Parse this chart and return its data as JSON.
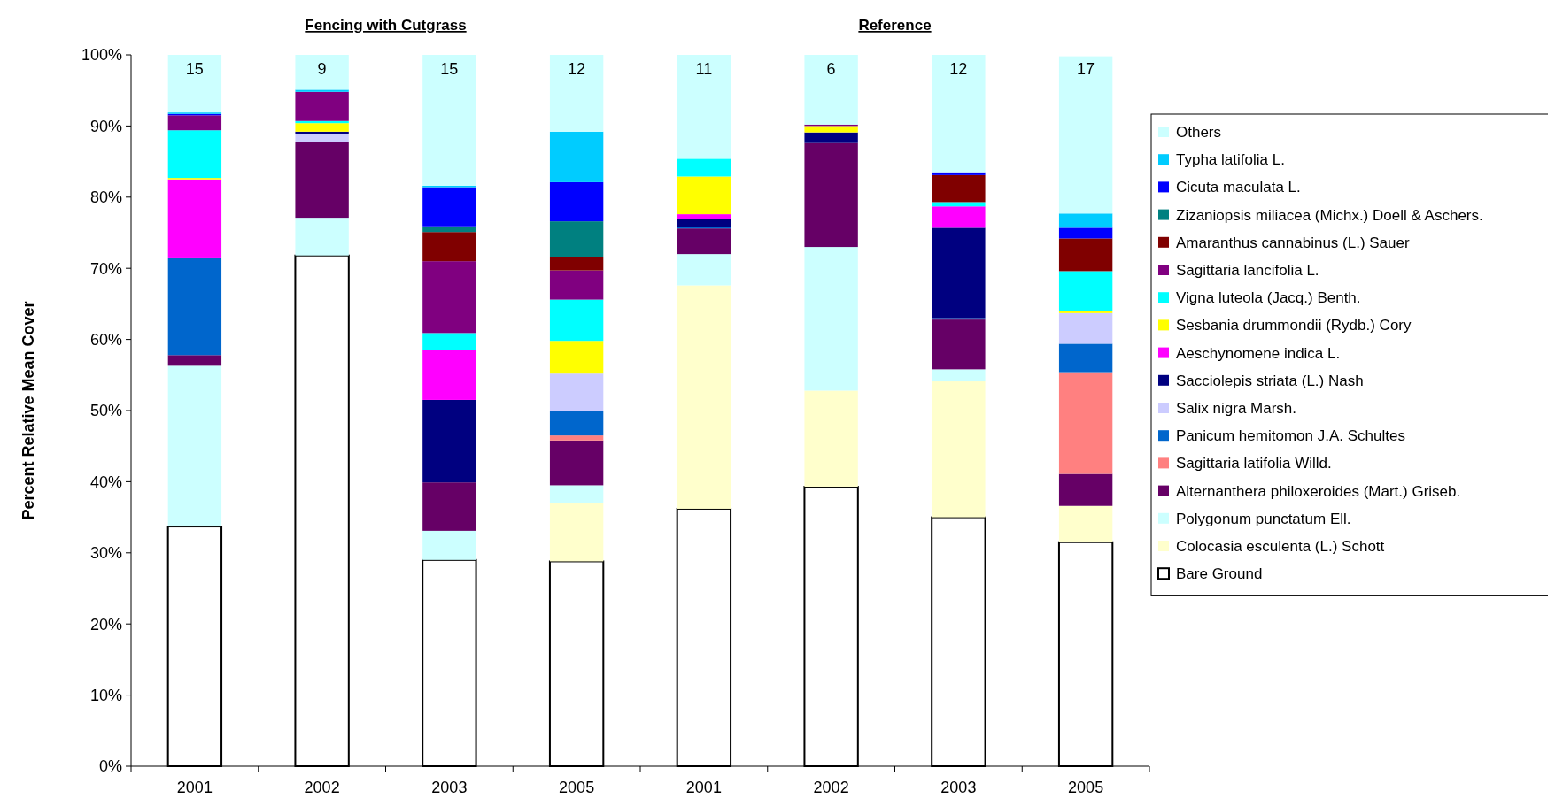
{
  "chart_data": {
    "type": "bar",
    "stacked": true,
    "ylabel": "Percent Relative Mean Cover",
    "categories": [
      "2001",
      "2002",
      "2003",
      "2005",
      "2001",
      "2002",
      "2003",
      "2005"
    ],
    "ylim": [
      0,
      100
    ],
    "yticks": [
      {
        "value": 0,
        "label": "0%"
      },
      {
        "value": 10,
        "label": "10%"
      },
      {
        "value": 20,
        "label": "20%"
      },
      {
        "value": 30,
        "label": "30%"
      },
      {
        "value": 40,
        "label": "40%"
      },
      {
        "value": 50,
        "label": "50%"
      },
      {
        "value": 60,
        "label": "60%"
      },
      {
        "value": 70,
        "label": "70%"
      },
      {
        "value": 80,
        "label": "80%"
      },
      {
        "value": 90,
        "label": "90%"
      },
      {
        "value": 100,
        "label": "100%"
      }
    ],
    "grid": false,
    "legend": "right",
    "annotations": [
      "Fencing with Cutgrass",
      "Reference",
      "15",
      "9",
      "15",
      "12",
      "11",
      "6",
      "12",
      "17"
    ],
    "series": [
      {
        "name": "Bare Ground",
        "color": "#ffffff",
        "values": [
          33.7,
          71.8,
          29.0,
          28.8,
          36.2,
          39.3,
          35.0,
          31.5
        ]
      },
      {
        "name": "Colocasia esculenta (L.) Schott",
        "color": "#ffffcc",
        "values": [
          0,
          0,
          0,
          8.2,
          31.4,
          13.5,
          19.1,
          5.1
        ]
      },
      {
        "name": "Polygonum punctatum Ell.",
        "color": "#ccffff",
        "values": [
          22.6,
          5.3,
          4.1,
          2.5,
          4.4,
          20.2,
          1.7,
          null
        ]
      },
      {
        "name": "Alternanthera philoxeroides (Mart.) Griseb.",
        "color": "#660066",
        "values": [
          1.5,
          10.6,
          6.8,
          6.3,
          3.6,
          14.6,
          7.0,
          4.5
        ]
      },
      {
        "name": "Sagittaria latifolia Willd.",
        "color": "#ff8080",
        "values": [
          0,
          0,
          0,
          0.7,
          0,
          0,
          0,
          14.3
        ]
      },
      {
        "name": "Panicum hemitomon J.A. Schultes",
        "color": "#0066cc",
        "values": [
          13.6,
          0,
          0,
          3.5,
          0.2,
          0,
          0.2,
          4.0
        ]
      },
      {
        "name": "Salix nigra Marsh.",
        "color": "#ccccff",
        "values": [
          0,
          1.2,
          0,
          5.2,
          0,
          0,
          0,
          4.3
        ]
      },
      {
        "name": "Sacciolepis striata (L.) Nash",
        "color": "#000080",
        "values": [
          0,
          0.3,
          11.6,
          0,
          1.1,
          1.5,
          12.7,
          0
        ]
      },
      {
        "name": "Aeschynomene indica L.",
        "color": "#ff00ff",
        "values": [
          11.1,
          0,
          7.0,
          0,
          0.7,
          0,
          3.0,
          0
        ]
      },
      {
        "name": "Sesbania drummondii (Rydb.) Cory",
        "color": "#ffff00",
        "values": [
          0.2,
          1.2,
          0,
          4.6,
          5.3,
          0.9,
          0,
          0.3
        ]
      },
      {
        "name": "Vigna luteola (Jacq.) Benth.",
        "color": "#00ffff",
        "values": [
          6.7,
          0.3,
          2.4,
          5.8,
          2.5,
          0,
          0.6,
          5.6
        ]
      },
      {
        "name": "Sagittaria lancifolia L.",
        "color": "#800080",
        "values": [
          2.1,
          4.1,
          10.1,
          4.1,
          0,
          0.2,
          0,
          0
        ]
      },
      {
        "name": "Amaranthus cannabinus (L.) Sauer",
        "color": "#800000",
        "values": [
          0,
          0,
          4.1,
          1.9,
          0,
          0,
          3.8,
          4.6
        ]
      },
      {
        "name": "Zizaniopsis miliacea (Michx.) Doell & Aschers.",
        "color": "#008080",
        "values": [
          0,
          0,
          0.8,
          5.0,
          0,
          0,
          0,
          0
        ]
      },
      {
        "name": "Cicuta maculata L.",
        "color": "#0000ff",
        "values": [
          0.2,
          0,
          5.5,
          5.5,
          0,
          0,
          0.4,
          1.5
        ]
      },
      {
        "name": "Typha latifolia L.",
        "color": "#00ccff",
        "values": [
          0.2,
          0.3,
          0.2,
          7.1,
          0,
          0,
          0,
          2.0
        ]
      },
      {
        "name": "Others",
        "color": "#ccffff",
        "values": [
          8.1,
          4.9,
          18.4,
          10.8,
          14.6,
          9.8,
          16.5,
          22.1
        ]
      }
    ]
  }
}
